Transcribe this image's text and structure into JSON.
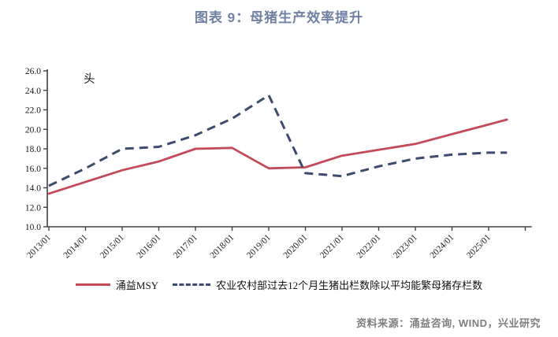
{
  "title": "图表 9：母猪生产效率提升",
  "colors": {
    "title": "#6F81A3",
    "axis": "#404040",
    "tick_text": "#1a1a1a",
    "unit_text": "#111111",
    "series_msy": "#C34A58",
    "series_moa": "#3C4B6E",
    "source_text": "#7f7f7f"
  },
  "chart_data": {
    "type": "line",
    "title": "图表 9：母猪生产效率提升",
    "unit_label": "头",
    "ylim": [
      10.0,
      26.0
    ],
    "ytick_step": 2.0,
    "ytick_labels_top_down": [
      "26.0",
      "24.0",
      "22.0",
      "20.0",
      "18.0",
      "16.0",
      "14.0",
      "12.0",
      "10.0"
    ],
    "x_tick_labels": [
      "2013/01",
      "2014/01",
      "2015/01",
      "2016/01",
      "2017/01",
      "2018/01",
      "2019/01",
      "2020/01",
      "2021/01",
      "2022/01",
      "2023/01",
      "2024/01",
      "2025/01"
    ],
    "n_x_ticks": 14,
    "grid": "off",
    "legend_position": "bottom",
    "x_positions": [
      0,
      1,
      2,
      3,
      4,
      5,
      6,
      7,
      8,
      9,
      10,
      11,
      12,
      12.5
    ],
    "series": [
      {
        "name": "涌益MSY",
        "line_style": "solid",
        "color": "#C34A58",
        "values": [
          13.4,
          14.6,
          15.8,
          16.7,
          18.0,
          18.1,
          16.0,
          16.1,
          17.3,
          17.9,
          18.5,
          19.5,
          20.5,
          21.0
        ]
      },
      {
        "name": "农业农村部过去12个月生猪出栏数除以平均能繁母猪存栏数",
        "line_style": "dashed",
        "color": "#3C4B6E",
        "values": [
          14.2,
          16.0,
          18.0,
          18.2,
          19.4,
          21.1,
          23.5,
          15.5,
          15.2,
          16.2,
          17.0,
          17.4,
          17.6,
          17.6
        ]
      }
    ]
  },
  "legend": {
    "items": [
      {
        "label": "涌益MSY"
      },
      {
        "label": "农业农村部过去12个月生猪出栏数除以平均能繁母猪存栏数"
      }
    ]
  },
  "footer": {
    "source": "资料来源：涌益咨询, WIND，兴业研究"
  }
}
